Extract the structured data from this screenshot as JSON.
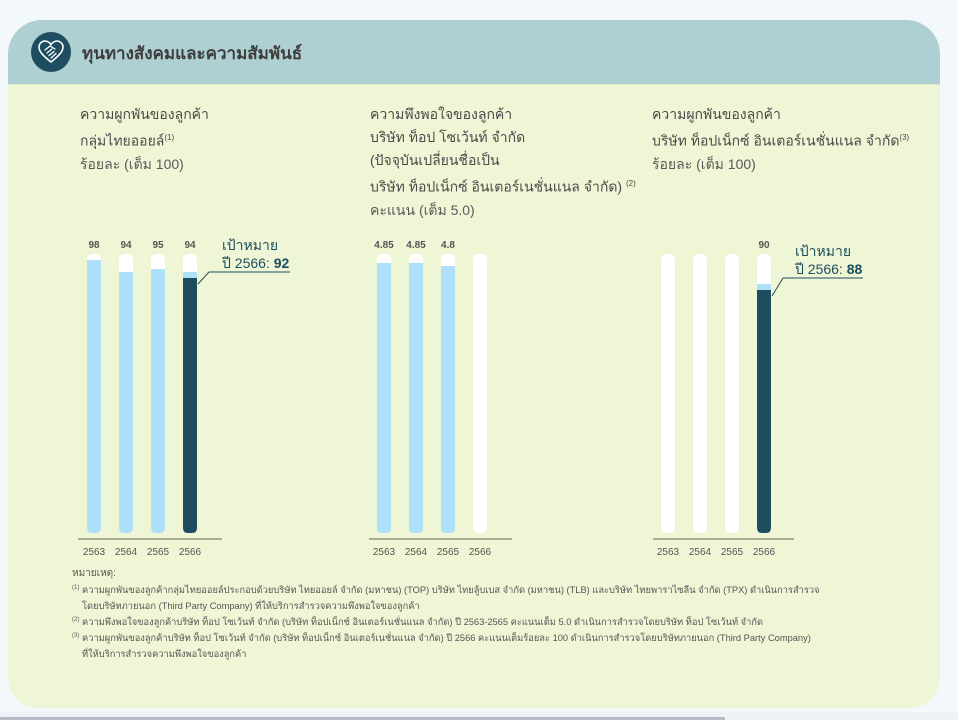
{
  "header": {
    "title": "ทุนทางสังคมและความสัมพันธ์",
    "icon": "heart-handshake-icon"
  },
  "colors": {
    "header_bg": "#afd0d3",
    "card_bg": "#eff6d5",
    "bar_past": "#aee0fb",
    "bar_current": "#1d4d5f",
    "bar_track": "#ffffff",
    "target_marker": "#aee0fb"
  },
  "chart_data": [
    {
      "type": "bar",
      "title_lines": [
        "ความผูกพันของลูกค้า",
        "กลุ่มไทยออยล์"
      ],
      "title_sup": "(1)",
      "unit": "ร้อยละ (เต็ม 100)",
      "categories": [
        "2563",
        "2564",
        "2565",
        "2566"
      ],
      "values": [
        98,
        94,
        95,
        94
      ],
      "value_labels": [
        "98",
        "94",
        "95",
        "94"
      ],
      "ylim": [
        0,
        100
      ],
      "highlight_index": 3,
      "target": {
        "value": 92,
        "label_line1": "เป้าหมาย",
        "label_prefix": "ปี 2566: ",
        "label_value": "92"
      },
      "xlabel": "",
      "ylabel": "",
      "grid": false
    },
    {
      "type": "bar",
      "title_lines": [
        "ความพึงพอใจของลูกค้า",
        "บริษัท ท็อป โซเว้นท์ จำกัด",
        "(ปัจจุบันเปลี่ยนชื่อเป็น",
        "บริษัท ท็อปเน็กซ์ อินเตอร์เนชั่นแนล จำกัด)"
      ],
      "title_sup": "(2)",
      "unit": "คะแนน (เต็ม 5.0)",
      "categories": [
        "2563",
        "2564",
        "2565",
        "2566"
      ],
      "values": [
        4.85,
        4.85,
        4.8,
        null
      ],
      "value_labels": [
        "4.85",
        "4.85",
        "4.8",
        ""
      ],
      "ylim": [
        0,
        5.0
      ],
      "highlight_index": null,
      "target": null,
      "xlabel": "",
      "ylabel": "",
      "grid": false
    },
    {
      "type": "bar",
      "title_lines": [
        "ความผูกพันของลูกค้า",
        "บริษัท ท็อปเน็กซ์ อินเตอร์เนชั่นแนล จำกัด"
      ],
      "title_sup": "(3)",
      "unit": "ร้อยละ (เต็ม 100)",
      "categories": [
        "2563",
        "2564",
        "2565",
        "2566"
      ],
      "values": [
        null,
        null,
        null,
        90
      ],
      "value_labels": [
        "",
        "",
        "",
        "90"
      ],
      "ylim": [
        0,
        100
      ],
      "highlight_index": 3,
      "target": {
        "value": 88,
        "label_line1": "เป้าหมาย",
        "label_prefix": "ปี 2566: ",
        "label_value": "88"
      },
      "xlabel": "",
      "ylabel": "",
      "grid": false
    }
  ],
  "notes": {
    "heading": "หมายเหตุ:",
    "items": [
      {
        "sup": "(1)",
        "lines": [
          "ความผูกพันของลูกค้ากลุ่มไทยออยล์ประกอบด้วยบริษัท ไทยออยล์ จำกัด (มหาชน) (TOP) บริษัท ไทยลู้บเบส จำกัด (มหาชน) (TLB) และบริษัท ไทยพาราไซลีน จำกัด (TPX) ดำเนินการสำรวจ",
          "โดยบริษัทภายนอก (Third Party Company) ที่ให้บริการสำรวจความพึงพอใจของลูกค้า"
        ]
      },
      {
        "sup": "(2)",
        "lines": [
          "ความพึงพอใจของลูกค้าบริษัท ท็อป โซเว้นท์ จำกัด (บริษัท ท็อปเน็กซ์ อินเตอร์เนชั่นแนล จำกัด) ปี 2563-2565 คะแนนเต็ม 5.0 ดำเนินการสำรวจโดยบริษัท ท็อป โซเว้นท์ จำกัด"
        ]
      },
      {
        "sup": "(3)",
        "lines": [
          "ความผูกพันของลูกค้าบริษัท ท็อป โซเว้นท์ จำกัด (บริษัท ท็อปเน็กซ์ อินเตอร์เนชั่นแนล จำกัด) ปี 2566 คะแนนเต็มร้อยละ 100 ดำเนินการสำรวจโดยบริษัทภายนอก (Third Party Company)",
          "ที่ให้บริการสำรวจความพึงพอใจของลูกค้า"
        ]
      }
    ]
  }
}
